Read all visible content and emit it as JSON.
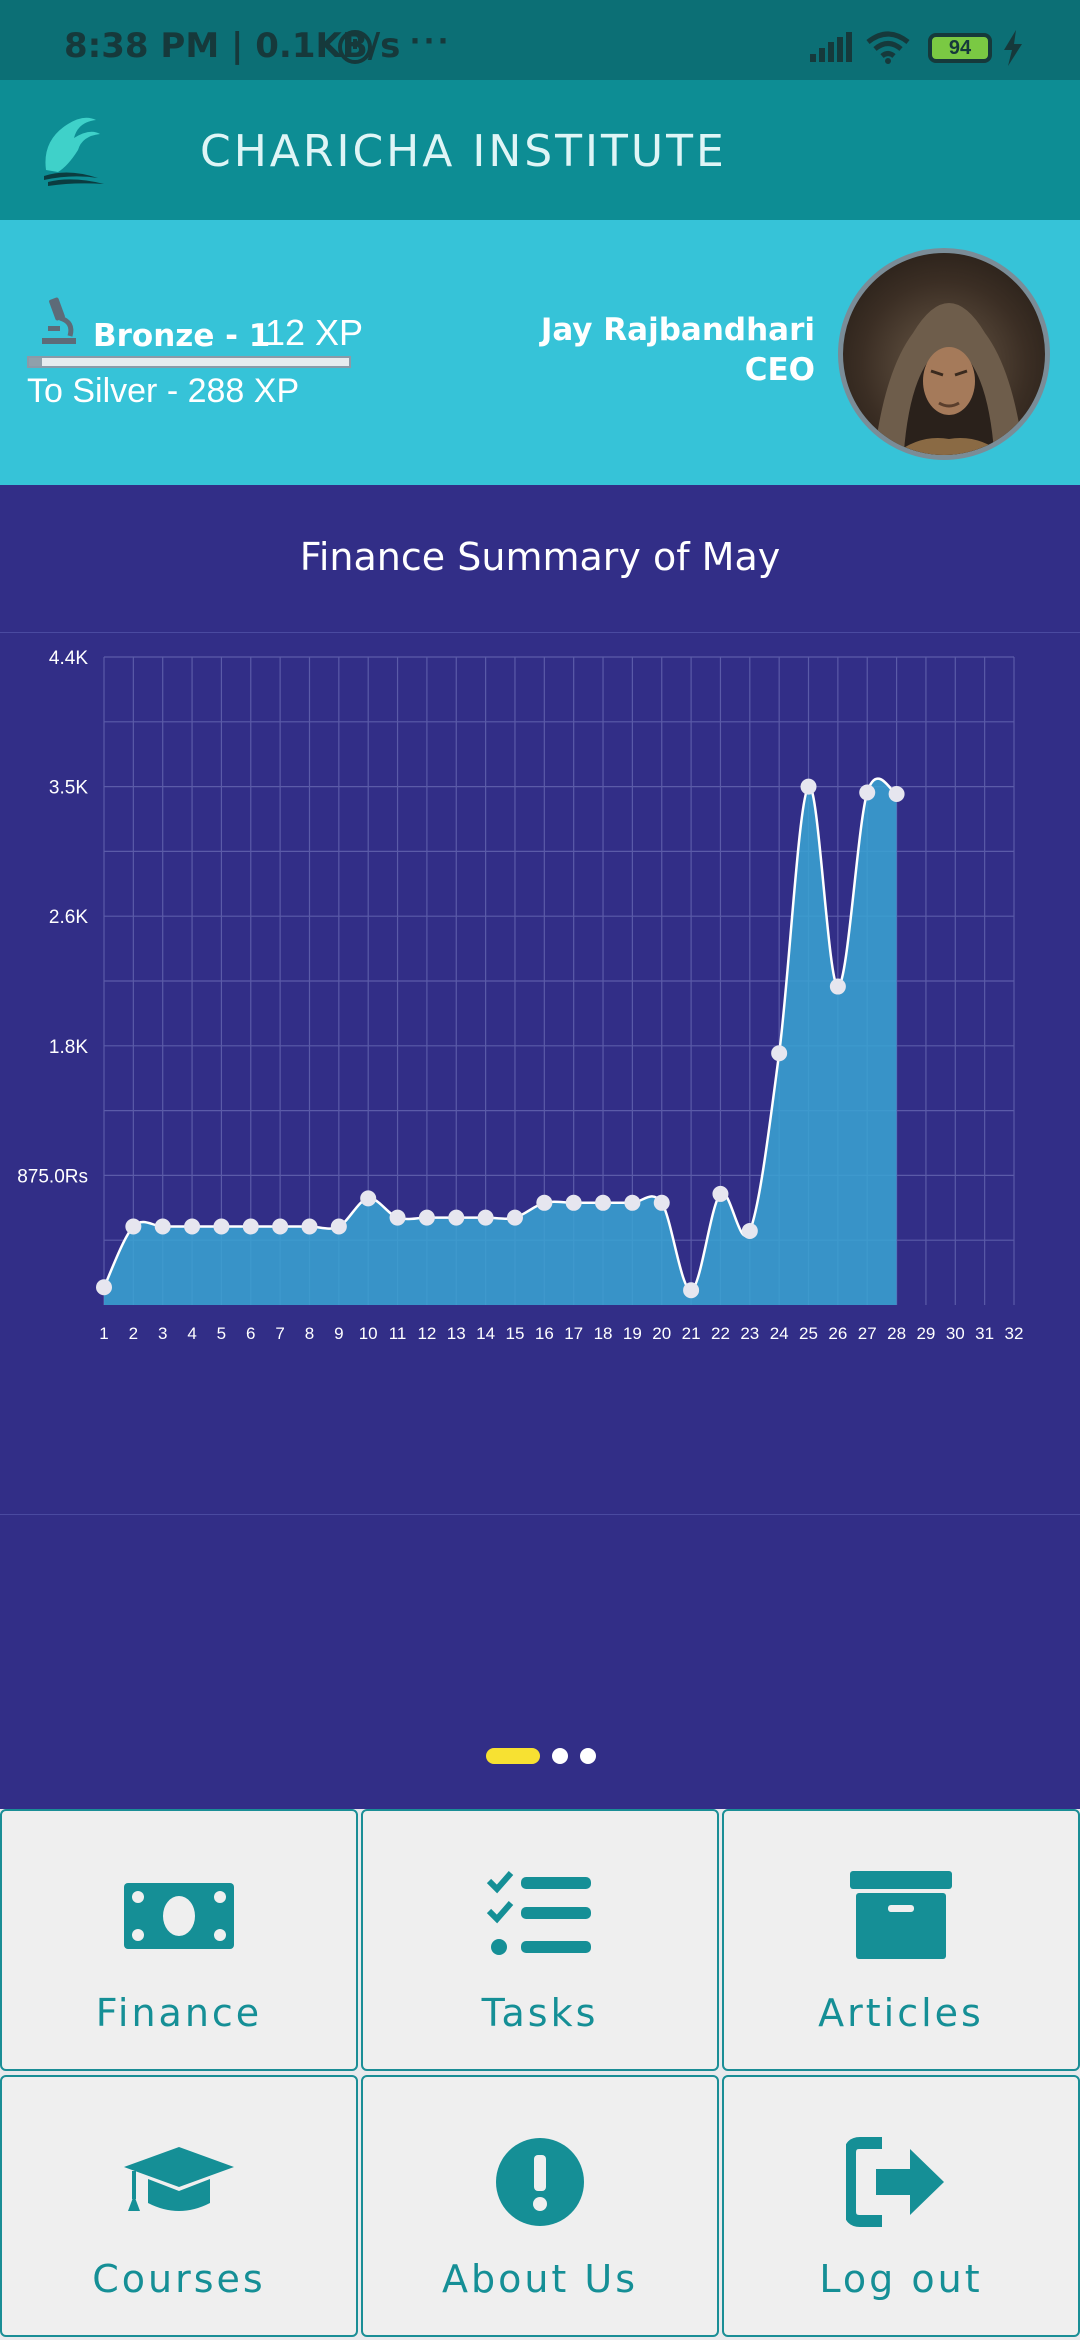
{
  "status_bar": {
    "time": "8:38 PM | 0.1KB/s",
    "overflow": "···",
    "battery": "94"
  },
  "header": {
    "title": "CHARICHA INSTITUTE",
    "logo_icon": "wave-logo-icon"
  },
  "profile": {
    "rank": "Bronze - 1",
    "xp": "12 XP",
    "xp_progress": 0.04,
    "next_rank": "To Silver - 288 XP",
    "name": "Jay Rajbandhari",
    "role": "CEO"
  },
  "chart": {
    "title": "Finance Summary of May"
  },
  "chart_data": {
    "type": "area",
    "title": "Finance Summary of May",
    "xlabel": "",
    "ylabel": "",
    "x": [
      1,
      2,
      3,
      4,
      5,
      6,
      7,
      8,
      9,
      10,
      11,
      12,
      13,
      14,
      15,
      16,
      17,
      18,
      19,
      20,
      21,
      22,
      23,
      24,
      25,
      26,
      27,
      28
    ],
    "x_ticks": [
      "1",
      "2",
      "3",
      "4",
      "5",
      "6",
      "7",
      "8",
      "9",
      "10",
      "11",
      "12",
      "13",
      "14",
      "15",
      "16",
      "17",
      "18",
      "19",
      "20",
      "21",
      "22",
      "23",
      "24",
      "25",
      "26",
      "27",
      "28",
      "29",
      "30",
      "31",
      "32"
    ],
    "y_ticks": [
      "875.0Rs",
      "1.8K",
      "2.6K",
      "3.5K",
      "4.4K"
    ],
    "y_tick_values": [
      875,
      1750,
      2625,
      3500,
      4375
    ],
    "values": [
      120,
      530,
      530,
      530,
      530,
      530,
      530,
      530,
      530,
      720,
      590,
      590,
      590,
      590,
      590,
      690,
      690,
      690,
      690,
      690,
      100,
      750,
      500,
      1700,
      3500,
      2150,
      3460,
      3450
    ],
    "ylim": [
      0,
      4375
    ],
    "xlim": [
      1,
      32
    ],
    "grid": true,
    "colors": {
      "fill": "#3aa4d4",
      "line": "#ffffff",
      "point": "#e6e6ef",
      "grid": "#5b5ba8"
    }
  },
  "pager": {
    "pages": 3,
    "active": 1
  },
  "menu": [
    {
      "label": "Finance",
      "icon": "money-bill-icon"
    },
    {
      "label": "Tasks",
      "icon": "task-list-icon"
    },
    {
      "label": "Articles",
      "icon": "archive-box-icon"
    },
    {
      "label": "Courses",
      "icon": "graduation-cap-icon"
    },
    {
      "label": "About Us",
      "icon": "exclamation-circle-icon"
    },
    {
      "label": "Log out",
      "icon": "sign-out-icon"
    }
  ],
  "colors": {
    "accent": "#158f96",
    "header": "#0d8d94",
    "profile_band": "#36c3d8",
    "panel": "#322e87",
    "pager_active": "#f7e132"
  }
}
